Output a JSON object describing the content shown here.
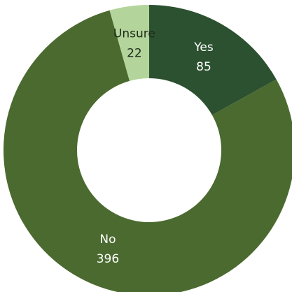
{
  "chart_data": {
    "type": "donut",
    "categories": [
      "Yes",
      "No",
      "Unsure"
    ],
    "values": [
      85,
      396,
      22
    ],
    "colors": [
      "#2c5130",
      "#4b6a2f",
      "#b3d59b"
    ]
  }
}
